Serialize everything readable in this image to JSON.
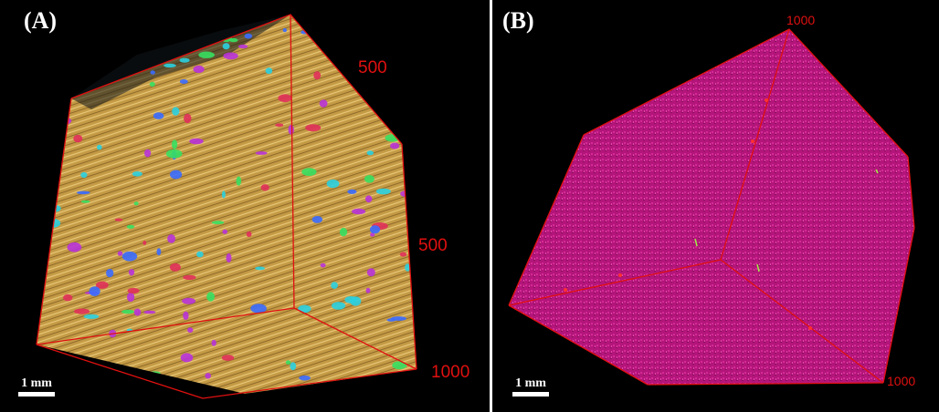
{
  "panels": [
    {
      "label": "(A)",
      "ticks": [
        "500",
        "500",
        "1000"
      ],
      "scale_bar": "1 mm",
      "colors": {
        "volume": "#c9a24a",
        "clusters": [
          "#2ad0e0",
          "#3a6cff",
          "#b833d8",
          "#36e060",
          "#e0305a"
        ],
        "box": "#e01010"
      }
    },
    {
      "label": "(B)",
      "ticks": [
        "1000",
        "1000"
      ],
      "scale_bar": "1 mm",
      "colors": {
        "volume": "#b8177a",
        "box": "#e01010"
      }
    }
  ]
}
